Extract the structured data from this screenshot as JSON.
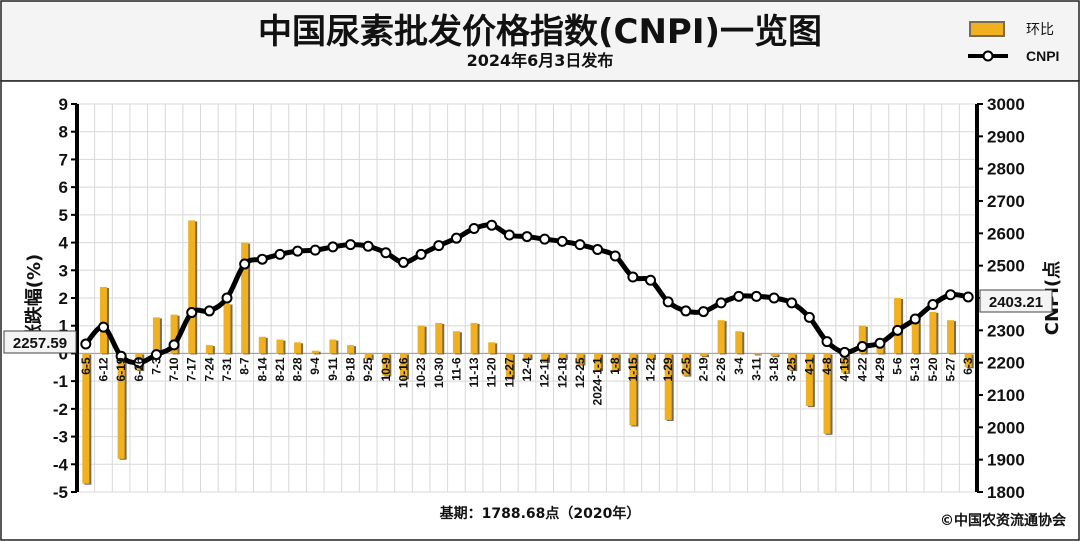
{
  "chart_data": {
    "type": "bar+line",
    "title": "中国尿素批发价格指数(CNPI)一览图",
    "subtitle": "2024年6月3日发布",
    "ylabel_left": "涨跌幅(%)",
    "ylabel_right": "CNPI(点",
    "ylim_left": [
      -5,
      9
    ],
    "ylim_right": [
      1800,
      3000
    ],
    "yticks_left": [
      "9",
      "8",
      "7",
      "6",
      "5",
      "4",
      "3",
      "2",
      "1",
      "0",
      "-1",
      "-2",
      "-3",
      "-4",
      "-5"
    ],
    "yticks_right": [
      "3000",
      "2900",
      "2800",
      "2700",
      "2600",
      "2500",
      "2400",
      "2300",
      "2200",
      "2100",
      "2000",
      "1900",
      "1800"
    ],
    "legend": {
      "bar": "环比",
      "line": "CNPI"
    },
    "categories": [
      "6-5",
      "6-12",
      "6-19",
      "6-26",
      "7-3",
      "7-10",
      "7-17",
      "7-24",
      "7-31",
      "8-7",
      "8-14",
      "8-21",
      "8-28",
      "9-4",
      "9-11",
      "9-18",
      "9-25",
      "10-9",
      "10-16",
      "10-23",
      "10-30",
      "11-6",
      "11-13",
      "11-20",
      "11-27",
      "12-4",
      "12-11",
      "12-18",
      "12-25",
      "2024-1-1",
      "1-8",
      "1-15",
      "1-22",
      "1-29",
      "2-5",
      "2-19",
      "2-26",
      "3-4",
      "3-11",
      "3-18",
      "3-25",
      "4-1",
      "4-8",
      "4-15",
      "4-22",
      "4-29",
      "5-6",
      "5-13",
      "5-20",
      "5-27",
      "6-3"
    ],
    "series": [
      {
        "name": "环比",
        "type": "bar",
        "axis": "left",
        "values": [
          -4.7,
          2.4,
          -3.8,
          -0.6,
          1.3,
          1.4,
          4.8,
          0.3,
          1.8,
          4.0,
          0.6,
          0.5,
          0.4,
          0.1,
          0.5,
          0.3,
          -0.2,
          -0.8,
          -0.9,
          1.0,
          1.1,
          0.8,
          1.1,
          0.4,
          -0.9,
          -0.2,
          -0.3,
          -0.2,
          -0.4,
          -0.6,
          -0.6,
          -2.6,
          -0.2,
          -2.4,
          -0.8,
          -0.1,
          1.2,
          0.8,
          0.0,
          -0.1,
          -0.6,
          -1.9,
          -2.9,
          -0.7,
          1.0,
          0.3,
          2.0,
          1.2,
          1.5,
          1.2,
          -0.5
        ]
      },
      {
        "name": "CNPI",
        "type": "line",
        "axis": "right",
        "values": [
          2257.59,
          2310,
          2220,
          2200,
          2225,
          2255,
          2355,
          2360,
          2400,
          2505,
          2520,
          2535,
          2545,
          2548,
          2558,
          2565,
          2560,
          2540,
          2510,
          2535,
          2562,
          2585,
          2615,
          2625,
          2595,
          2590,
          2582,
          2575,
          2565,
          2550,
          2530,
          2465,
          2455,
          2388,
          2360,
          2358,
          2385,
          2405,
          2405,
          2400,
          2385,
          2340,
          2265,
          2232,
          2250,
          2260,
          2300,
          2335,
          2380,
          2410,
          2403.21
        ]
      }
    ],
    "callout_left": "2257.59",
    "callout_right": "2403.21",
    "footer_base": "基期：1788.68点（2020年）",
    "footer_copyright": "©中国农资流通协会",
    "colors": {
      "bar_fill": "#f0b020",
      "bar_shadow": "#7a6a50",
      "line": "#000000",
      "point_fill": "#ffffff",
      "plot_bg": "#ffffff",
      "grid": "#d8d8d8",
      "header_bg": "#f4f4f4"
    },
    "grid": true,
    "legend_position": "top-right"
  }
}
